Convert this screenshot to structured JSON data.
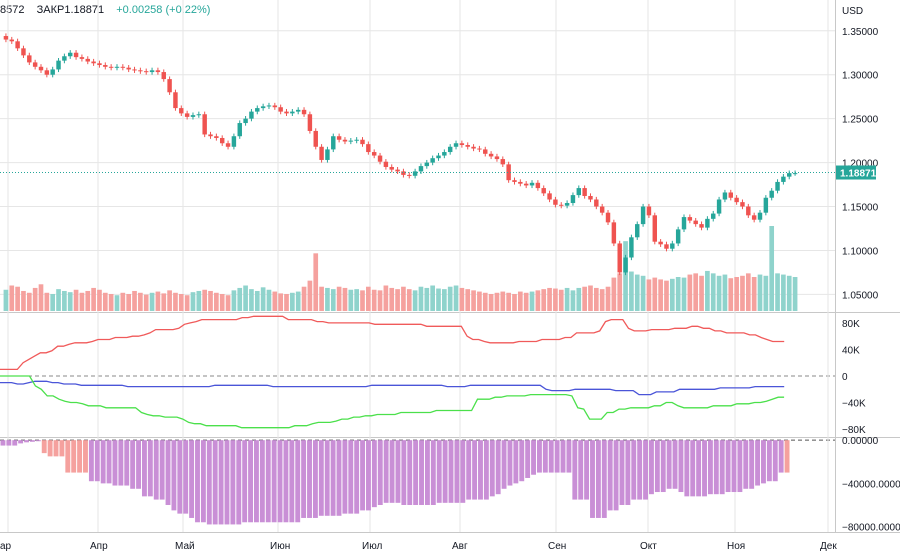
{
  "header": {
    "open_fragment": "8572",
    "close_label": "ЗАКР",
    "close_value": "1.18871",
    "change": "+0.00258 (+0.22%)",
    "currency": "USD"
  },
  "colors": {
    "up": "#26a69a",
    "down": "#ef5350",
    "up_vol": "#8fd3cc",
    "down_vol": "#f5a19e",
    "line_red": "#f05a5a",
    "line_blue": "#4a55d8",
    "line_green": "#4be04b",
    "hist_neg": "#c98fd6",
    "hist_neg_light": "#f5a19e",
    "price_tag_bg": "#26a69a",
    "grid": "#e6e6e6",
    "text": "#131722"
  },
  "chart_data": [
    {
      "type": "candlestick",
      "title": "",
      "price_axis_ticks": [
        "1.35000",
        "1.30000",
        "1.25000",
        "1.20000",
        "1.15000",
        "1.10000",
        "1.05000"
      ],
      "price_axis_values": [
        1.35,
        1.3,
        1.25,
        1.2,
        1.15,
        1.1,
        1.05
      ],
      "current_price": 1.18871,
      "current_price_label": "1.18871",
      "x_axis_labels": [
        "ар",
        "Апр",
        "Май",
        "Июн",
        "Июл",
        "Авг",
        "Сен",
        "Окт",
        "Ноя",
        "Дек"
      ],
      "ylim": [
        1.03,
        1.385
      ],
      "closes": [
        1.34,
        1.338,
        1.33,
        1.322,
        1.314,
        1.309,
        1.305,
        1.3,
        1.306,
        1.316,
        1.321,
        1.325,
        1.32,
        1.318,
        1.315,
        1.313,
        1.311,
        1.309,
        1.308,
        1.309,
        1.308,
        1.306,
        1.305,
        1.304,
        1.303,
        1.305,
        1.303,
        1.295,
        1.28,
        1.262,
        1.256,
        1.252,
        1.254,
        1.255,
        1.232,
        1.23,
        1.228,
        1.222,
        1.218,
        1.23,
        1.245,
        1.25,
        1.258,
        1.262,
        1.264,
        1.265,
        1.263,
        1.258,
        1.256,
        1.258,
        1.26,
        1.255,
        1.236,
        1.218,
        1.203,
        1.215,
        1.23,
        1.226,
        1.224,
        1.225,
        1.226,
        1.221,
        1.212,
        1.208,
        1.201,
        1.195,
        1.192,
        1.19,
        1.186,
        1.185,
        1.19,
        1.196,
        1.2,
        1.205,
        1.208,
        1.212,
        1.218,
        1.222,
        1.22,
        1.218,
        1.216,
        1.215,
        1.21,
        1.207,
        1.204,
        1.198,
        1.18,
        1.178,
        1.176,
        1.174,
        1.177,
        1.171,
        1.165,
        1.158,
        1.152,
        1.151,
        1.154,
        1.163,
        1.171,
        1.162,
        1.158,
        1.15,
        1.143,
        1.132,
        1.108,
        1.075,
        1.092,
        1.115,
        1.13,
        1.15,
        1.14,
        1.11,
        1.107,
        1.102,
        1.108,
        1.124,
        1.138,
        1.134,
        1.13,
        1.126,
        1.136,
        1.142,
        1.158,
        1.166,
        1.16,
        1.155,
        1.15,
        1.14,
        1.135,
        1.143,
        1.16,
        1.168,
        1.178,
        1.184,
        1.188,
        1.188
      ],
      "volume_relative": [
        0.35,
        0.42,
        0.4,
        0.33,
        0.3,
        0.38,
        0.44,
        0.3,
        0.28,
        0.36,
        0.33,
        0.31,
        0.35,
        0.3,
        0.33,
        0.38,
        0.35,
        0.3,
        0.28,
        0.26,
        0.3,
        0.28,
        0.33,
        0.3,
        0.27,
        0.3,
        0.32,
        0.29,
        0.34,
        0.3,
        0.28,
        0.26,
        0.31,
        0.33,
        0.35,
        0.33,
        0.3,
        0.28,
        0.26,
        0.34,
        0.38,
        0.42,
        0.36,
        0.33,
        0.39,
        0.35,
        0.32,
        0.29,
        0.28,
        0.3,
        0.32,
        0.4,
        0.5,
        0.95,
        0.4,
        0.38,
        0.36,
        0.4,
        0.38,
        0.35,
        0.36,
        0.34,
        0.4,
        0.35,
        0.34,
        0.42,
        0.38,
        0.36,
        0.4,
        0.36,
        0.34,
        0.4,
        0.38,
        0.42,
        0.37,
        0.36,
        0.4,
        0.42,
        0.38,
        0.36,
        0.34,
        0.32,
        0.3,
        0.28,
        0.3,
        0.32,
        0.3,
        0.28,
        0.32,
        0.3,
        0.32,
        0.34,
        0.36,
        0.38,
        0.37,
        0.35,
        0.38,
        0.34,
        0.38,
        0.4,
        0.42,
        0.38,
        0.36,
        0.4,
        0.55,
        0.62,
        1.15,
        0.65,
        0.6,
        0.58,
        0.52,
        0.55,
        0.52,
        0.5,
        0.53,
        0.56,
        0.55,
        0.6,
        0.62,
        0.58,
        0.66,
        0.62,
        0.58,
        0.6,
        0.54,
        0.56,
        0.58,
        0.62,
        0.56,
        0.6,
        0.58,
        1.4,
        0.62,
        0.6,
        0.58,
        0.56
      ]
    },
    {
      "type": "line",
      "title": "",
      "y_axis_ticks": [
        "80K",
        "40K",
        "0",
        "−40K",
        "−80K"
      ],
      "y_axis_values": [
        80000,
        40000,
        0,
        -40000,
        -80000
      ],
      "ylim": [
        -92000,
        95000
      ],
      "series": [
        {
          "color_key": "line_red",
          "values": [
            10000,
            10000,
            10000,
            10000,
            20000,
            25000,
            30000,
            35000,
            35000,
            38000,
            45000,
            45000,
            48000,
            50000,
            50000,
            50000,
            52000,
            55000,
            55000,
            55000,
            58000,
            58000,
            58000,
            60000,
            60000,
            62000,
            65000,
            70000,
            70000,
            70000,
            70000,
            72000,
            78000,
            80000,
            82000,
            85000,
            85000,
            85000,
            85000,
            85000,
            85000,
            85000,
            88000,
            88000,
            90000,
            90000,
            90000,
            90000,
            90000,
            90000,
            85000,
            85000,
            85000,
            85000,
            85000,
            82000,
            82000,
            80000,
            80000,
            80000,
            80000,
            80000,
            80000,
            80000,
            80000,
            78000,
            78000,
            78000,
            78000,
            78000,
            78000,
            78000,
            78000,
            78000,
            75000,
            75000,
            75000,
            75000,
            75000,
            75000,
            75000,
            60000,
            55000,
            55000,
            52000,
            50000,
            50000,
            50000,
            50000,
            50000,
            52000,
            52000,
            52000,
            52000,
            55000,
            55000,
            55000,
            55000,
            58000,
            58000,
            65000,
            65000,
            65000,
            65000,
            68000,
            82000,
            85000,
            85000,
            85000,
            72000,
            68000,
            68000,
            68000,
            70000,
            70000,
            70000,
            70000,
            72000,
            72000,
            72000,
            75000,
            75000,
            72000,
            72000,
            68000,
            68000,
            65000,
            65000,
            65000,
            65000,
            62000,
            62000,
            58000,
            55000,
            52000,
            52000,
            52000
          ]
        },
        {
          "color_key": "line_blue",
          "values": [
            -10000,
            -10000,
            -10000,
            -12000,
            -12000,
            -10000,
            -8000,
            -8000,
            -8000,
            -10000,
            -10000,
            -12000,
            -12000,
            -12000,
            -14000,
            -14000,
            -14000,
            -14000,
            -14000,
            -14000,
            -14000,
            -14000,
            -16000,
            -16000,
            -16000,
            -16000,
            -16000,
            -16000,
            -16000,
            -16000,
            -16000,
            -16000,
            -16000,
            -16000,
            -16000,
            -16000,
            -16000,
            -14000,
            -14000,
            -14000,
            -14000,
            -14000,
            -14000,
            -14000,
            -14000,
            -14000,
            -14000,
            -16000,
            -16000,
            -16000,
            -16000,
            -16000,
            -16000,
            -16000,
            -16000,
            -16000,
            -16000,
            -16000,
            -16000,
            -16000,
            -16000,
            -16000,
            -16000,
            -16000,
            -14000,
            -14000,
            -14000,
            -14000,
            -14000,
            -14000,
            -14000,
            -14000,
            -14000,
            -14000,
            -14000,
            -14000,
            -14000,
            -16000,
            -16000,
            -16000,
            -16000,
            -14000,
            -14000,
            -14000,
            -14000,
            -14000,
            -14000,
            -14000,
            -14000,
            -14000,
            -14000,
            -14000,
            -14000,
            -14000,
            -20000,
            -22000,
            -22000,
            -22000,
            -22000,
            -20000,
            -20000,
            -20000,
            -20000,
            -20000,
            -20000,
            -20000,
            -22000,
            -22000,
            -22000,
            -22000,
            -28000,
            -28000,
            -28000,
            -24000,
            -24000,
            -24000,
            -24000,
            -20000,
            -20000,
            -20000,
            -20000,
            -20000,
            -20000,
            -20000,
            -18000,
            -18000,
            -18000,
            -18000,
            -18000,
            -18000,
            -16000,
            -16000,
            -16000,
            -16000,
            -16000,
            -16000
          ]
        },
        {
          "color_key": "line_green",
          "values": [
            0,
            0,
            0,
            0,
            0,
            0,
            -15000,
            -20000,
            -30000,
            -30000,
            -35000,
            -38000,
            -40000,
            -40000,
            -42000,
            -45000,
            -45000,
            -45000,
            -48000,
            -48000,
            -48000,
            -48000,
            -48000,
            -48000,
            -55000,
            -58000,
            -60000,
            -60000,
            -62000,
            -62000,
            -62000,
            -65000,
            -70000,
            -72000,
            -72000,
            -75000,
            -75000,
            -75000,
            -75000,
            -75000,
            -75000,
            -78000,
            -78000,
            -78000,
            -78000,
            -78000,
            -78000,
            -78000,
            -78000,
            -78000,
            -75000,
            -75000,
            -75000,
            -72000,
            -70000,
            -70000,
            -70000,
            -68000,
            -65000,
            -65000,
            -62000,
            -62000,
            -60000,
            -60000,
            -58000,
            -58000,
            -58000,
            -58000,
            -55000,
            -55000,
            -55000,
            -55000,
            -55000,
            -55000,
            -52000,
            -52000,
            -52000,
            -52000,
            -52000,
            -52000,
            -52000,
            -35000,
            -35000,
            -35000,
            -32000,
            -32000,
            -30000,
            -30000,
            -30000,
            -30000,
            -28000,
            -28000,
            -28000,
            -28000,
            -28000,
            -28000,
            -28000,
            -30000,
            -48000,
            -50000,
            -65000,
            -65000,
            -65000,
            -55000,
            -55000,
            -50000,
            -50000,
            -48000,
            -48000,
            -48000,
            -48000,
            -45000,
            -45000,
            -40000,
            -40000,
            -45000,
            -48000,
            -48000,
            -48000,
            -48000,
            -48000,
            -45000,
            -45000,
            -45000,
            -45000,
            -42000,
            -42000,
            -42000,
            -40000,
            -40000,
            -38000,
            -35000,
            -32000,
            -32000
          ]
        }
      ]
    },
    {
      "type": "bar",
      "title": "",
      "y_axis_ticks": [
        "0.00000",
        "−40000.00000",
        "−80000.00000"
      ],
      "y_axis_values": [
        0,
        -40000,
        -80000
      ],
      "ylim": [
        -85000,
        2000
      ],
      "values": [
        -5000,
        -5000,
        -5000,
        -3000,
        -2000,
        -1500,
        -1000,
        -12000,
        -15000,
        -15000,
        -15000,
        -30000,
        -30000,
        -30000,
        -30000,
        -38000,
        -38000,
        -40000,
        -40000,
        -42000,
        -42000,
        -42000,
        -45000,
        -45000,
        -52000,
        -52000,
        -55000,
        -55000,
        -60000,
        -65000,
        -68000,
        -68000,
        -72000,
        -76000,
        -76000,
        -78000,
        -78000,
        -78000,
        -78000,
        -78000,
        -78000,
        -76000,
        -76000,
        -76000,
        -76000,
        -76000,
        -76000,
        -76000,
        -76000,
        -76000,
        -76000,
        -72000,
        -72000,
        -72000,
        -70000,
        -70000,
        -70000,
        -70000,
        -68000,
        -68000,
        -68000,
        -65000,
        -65000,
        -62000,
        -60000,
        -58000,
        -58000,
        -58000,
        -60000,
        -60000,
        -60000,
        -60000,
        -60000,
        -60000,
        -58000,
        -58000,
        -58000,
        -58000,
        -58000,
        -55000,
        -55000,
        -55000,
        -55000,
        -52000,
        -50000,
        -45000,
        -42000,
        -40000,
        -38000,
        -35000,
        -32000,
        -30000,
        -30000,
        -30000,
        -30000,
        -30000,
        -30000,
        -55000,
        -55000,
        -55000,
        -72000,
        -72000,
        -72000,
        -65000,
        -65000,
        -60000,
        -60000,
        -55000,
        -55000,
        -55000,
        -50000,
        -48000,
        -48000,
        -45000,
        -45000,
        -48000,
        -52000,
        -52000,
        -52000,
        -52000,
        -50000,
        -50000,
        -50000,
        -48000,
        -48000,
        -48000,
        -45000,
        -45000,
        -42000,
        -40000,
        -38000,
        -38000,
        -30000,
        -30000
      ],
      "light_bar_indices": [
        7,
        8,
        9,
        10,
        11,
        12,
        13,
        14,
        133,
        134,
        135,
        136
      ]
    }
  ]
}
